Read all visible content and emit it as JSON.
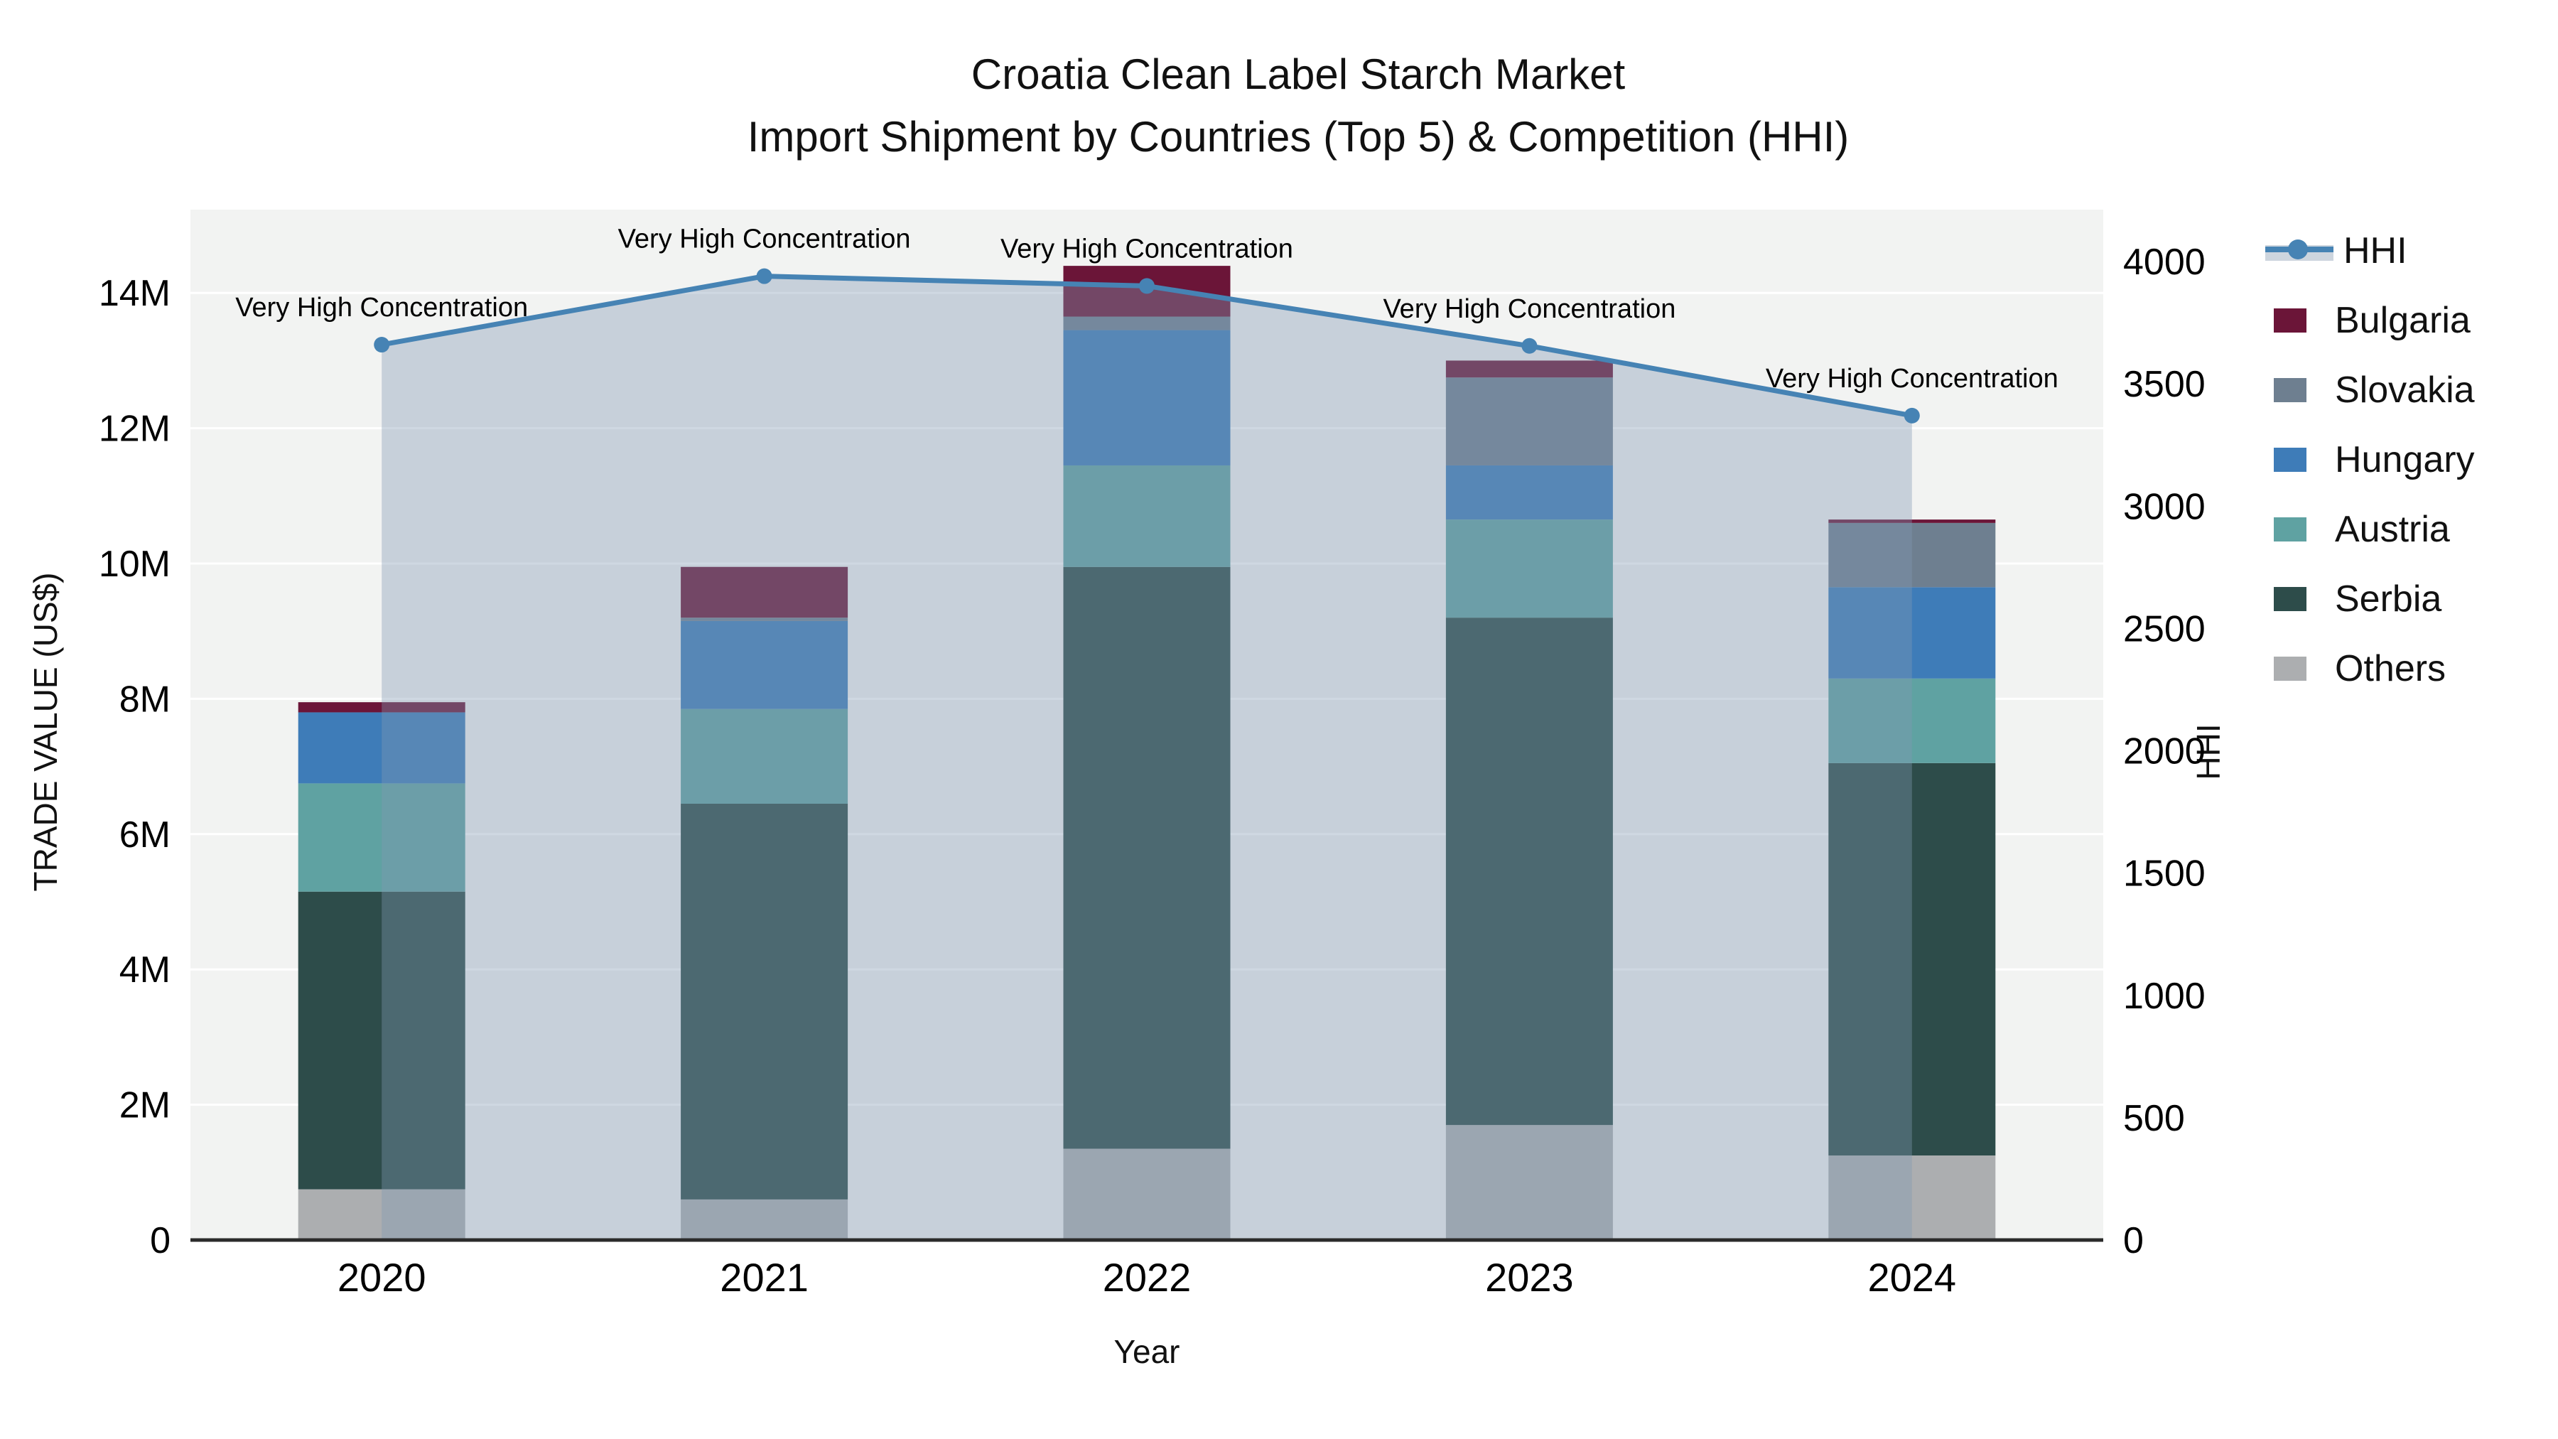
{
  "title": {
    "line1": "Croatia Clean Label Starch Market",
    "line2": "Import Shipment by Countries (Top 5) & Competition (HHI)"
  },
  "axes": {
    "y_left": {
      "label": "TRADE VALUE (US$)",
      "tick_labels": [
        "0",
        "2M",
        "4M",
        "6M",
        "8M",
        "10M",
        "12M",
        "14M"
      ],
      "tick_values_musd": [
        0,
        2,
        4,
        6,
        8,
        10,
        12,
        14
      ]
    },
    "y_right": {
      "label": "HHI",
      "tick_labels": [
        "0",
        "500",
        "1000",
        "1500",
        "2000",
        "2500",
        "3000",
        "3500",
        "4000"
      ],
      "tick_values": [
        0,
        500,
        1000,
        1500,
        2000,
        2500,
        3000,
        3500,
        4000
      ]
    },
    "x": {
      "label": "Year",
      "tick_labels": [
        "2020",
        "2021",
        "2022",
        "2023",
        "2024"
      ]
    }
  },
  "chart_data": {
    "type": "bar+line",
    "categories": [
      "2020",
      "2021",
      "2022",
      "2023",
      "2024"
    ],
    "stacked_bars_bottom_to_top": [
      {
        "name": "Others",
        "color": "#acaeb0",
        "values_musd": [
          0.75,
          0.6,
          1.35,
          1.7,
          1.25
        ]
      },
      {
        "name": "Serbia",
        "color": "#2d4c4a",
        "values_musd": [
          4.4,
          5.85,
          8.6,
          7.5,
          5.8
        ]
      },
      {
        "name": "Austria",
        "color": "#5fa2a2",
        "values_musd": [
          1.6,
          1.4,
          1.5,
          1.45,
          1.25
        ]
      },
      {
        "name": "Hungary",
        "color": "#3e7cb8",
        "values_musd": [
          1.05,
          1.3,
          2.0,
          0.8,
          1.35
        ]
      },
      {
        "name": "Slovakia",
        "color": "#6e7f90",
        "values_musd": [
          0.0,
          0.05,
          0.2,
          1.3,
          0.95
        ]
      },
      {
        "name": "Bulgaria",
        "color": "#6b1538",
        "values_musd": [
          0.15,
          0.75,
          0.75,
          0.25,
          0.05
        ]
      }
    ],
    "bar_totals_musd": [
      7.95,
      9.95,
      14.4,
      13.0,
      10.65
    ],
    "line_series": {
      "name": "HHI",
      "axis": "right",
      "color": "#4683b4",
      "area_fill_color": "rgba(130,152,178,0.38)",
      "values": [
        3660,
        3940,
        3900,
        3655,
        3370
      ]
    },
    "annotations": [
      "Very High Concentration",
      "Very High Concentration",
      "Very High Concentration",
      "Very High Concentration",
      "Very High Concentration"
    ],
    "ylim_left_musd": [
      0,
      15.2
    ],
    "ylim_right": [
      0,
      4000
    ],
    "grid": "horizontal",
    "legend_position": "right"
  },
  "legend": {
    "items": [
      {
        "label": "HHI",
        "type": "line",
        "color": "#4683b4"
      },
      {
        "label": "Bulgaria",
        "type": "swatch",
        "color": "#6b1538"
      },
      {
        "label": "Slovakia",
        "type": "swatch",
        "color": "#6e7f90"
      },
      {
        "label": "Hungary",
        "type": "swatch",
        "color": "#3e7cb8"
      },
      {
        "label": "Austria",
        "type": "swatch",
        "color": "#5fa2a2"
      },
      {
        "label": "Serbia",
        "type": "swatch",
        "color": "#2d4c4a"
      },
      {
        "label": "Others",
        "type": "swatch",
        "color": "#acaeb0"
      }
    ]
  },
  "colors": {
    "plot_background": "#f2f3f2",
    "gridline": "#ffffff",
    "axis_line": "#2b2b2b"
  }
}
